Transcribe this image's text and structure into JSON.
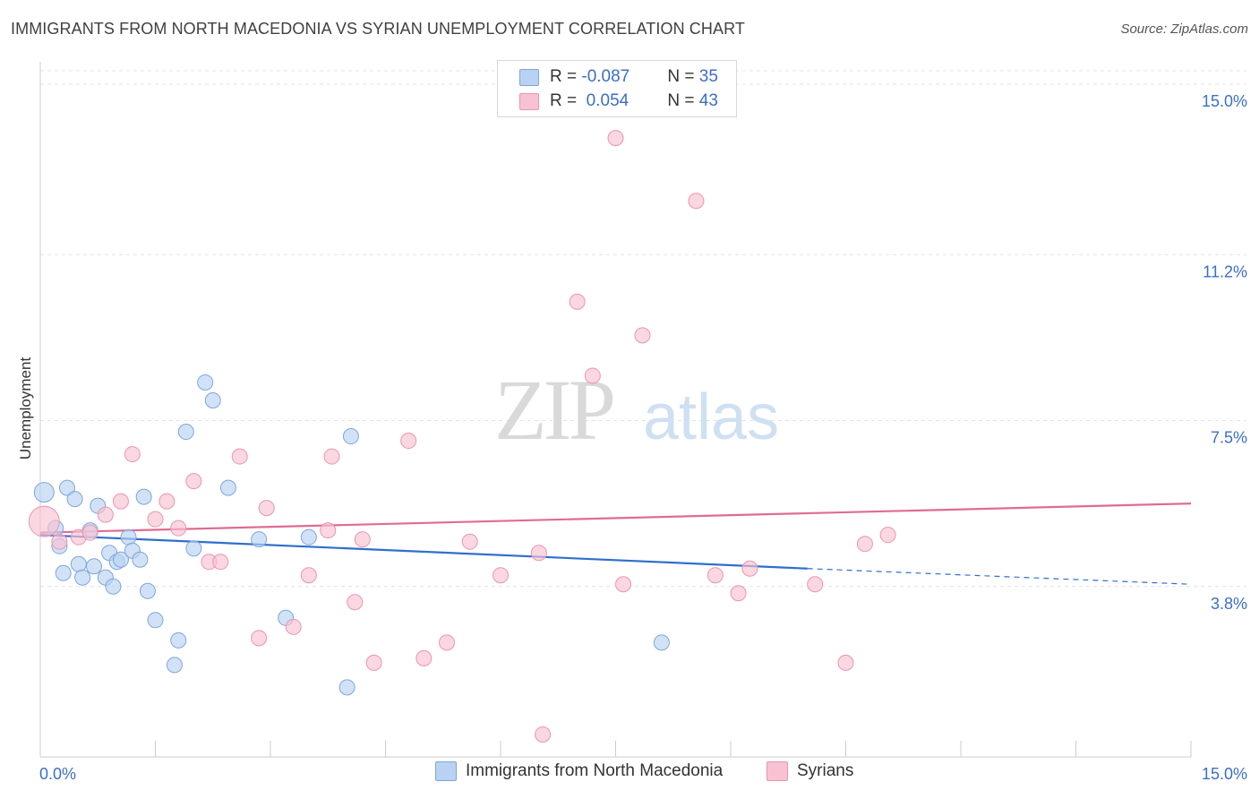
{
  "title": "IMMIGRANTS FROM NORTH MACEDONIA VS SYRIAN UNEMPLOYMENT CORRELATION CHART",
  "source": "Source: ZipAtlas.com",
  "watermark": {
    "zip": "ZIP",
    "atlas": "atlas"
  },
  "colors": {
    "blue_fill": "#b9d2f3",
    "blue_stroke": "#7ea6dc",
    "blue_line": "#2f6fcc",
    "pink_fill": "#f9c2d3",
    "pink_stroke": "#e995b0",
    "pink_line": "#e06b95",
    "axis_label": "#3b6fc4",
    "grid": "#e3e3e3"
  },
  "legend": {
    "rows": [
      {
        "r_label": "R = ",
        "r_value": "-0.087",
        "n_label": "N = ",
        "n_value": "35",
        "color": "#b9d2f3",
        "border": "#7ea6dc"
      },
      {
        "r_label": "R = ",
        "r_value": " 0.054",
        "n_label": "N = ",
        "n_value": "43",
        "color": "#f9c2d3",
        "border": "#e995b0"
      }
    ]
  },
  "chart_data": {
    "type": "scatter",
    "title": "IMMIGRANTS FROM NORTH MACEDONIA VS SYRIAN UNEMPLOYMENT CORRELATION CHART",
    "xlabel": "",
    "ylabel": "Unemployment",
    "xlim": [
      0,
      15
    ],
    "ylim": [
      0,
      15.5
    ],
    "x_tick_labels": [
      {
        "value": 0,
        "label": "0.0%"
      },
      {
        "value": 15,
        "label": "15.0%"
      }
    ],
    "y_tick_labels": [
      {
        "value": 3.8,
        "label": "3.8%"
      },
      {
        "value": 7.5,
        "label": "7.5%"
      },
      {
        "value": 11.2,
        "label": "11.2%"
      },
      {
        "value": 15.0,
        "label": "15.0%"
      }
    ],
    "grid": true,
    "legend_position": "top-center",
    "series": [
      {
        "name": "Immigrants from North Macedonia",
        "color": "#b9d2f3",
        "points": [
          [
            0.05,
            5.9
          ],
          [
            0.2,
            5.1
          ],
          [
            0.25,
            4.7
          ],
          [
            0.3,
            4.1
          ],
          [
            0.35,
            6.0
          ],
          [
            0.45,
            5.75
          ],
          [
            0.5,
            4.3
          ],
          [
            0.55,
            4.0
          ],
          [
            0.65,
            5.05
          ],
          [
            0.7,
            4.25
          ],
          [
            0.75,
            5.6
          ],
          [
            0.85,
            4.0
          ],
          [
            0.9,
            4.55
          ],
          [
            0.95,
            3.8
          ],
          [
            1.0,
            4.35
          ],
          [
            1.05,
            4.4
          ],
          [
            1.15,
            4.9
          ],
          [
            1.2,
            4.6
          ],
          [
            1.3,
            4.4
          ],
          [
            1.35,
            5.8
          ],
          [
            1.4,
            3.7
          ],
          [
            1.5,
            3.05
          ],
          [
            1.8,
            2.6
          ],
          [
            1.9,
            7.25
          ],
          [
            2.0,
            4.65
          ],
          [
            2.15,
            8.35
          ],
          [
            2.25,
            7.95
          ],
          [
            2.45,
            6.0
          ],
          [
            2.85,
            4.85
          ],
          [
            3.2,
            3.1
          ],
          [
            3.5,
            4.9
          ],
          [
            4.0,
            1.55
          ],
          [
            4.05,
            7.15
          ],
          [
            8.1,
            2.55
          ],
          [
            1.75,
            2.05
          ]
        ]
      },
      {
        "name": "Syrians",
        "color": "#f9c2d3",
        "points": [
          [
            0.05,
            5.25
          ],
          [
            0.25,
            4.8
          ],
          [
            0.5,
            4.9
          ],
          [
            0.65,
            5.0
          ],
          [
            0.85,
            5.4
          ],
          [
            1.05,
            5.7
          ],
          [
            1.2,
            6.75
          ],
          [
            1.5,
            5.3
          ],
          [
            1.65,
            5.7
          ],
          [
            1.8,
            5.1
          ],
          [
            2.0,
            6.15
          ],
          [
            2.2,
            4.35
          ],
          [
            2.35,
            4.35
          ],
          [
            2.6,
            6.7
          ],
          [
            2.85,
            2.65
          ],
          [
            2.95,
            5.55
          ],
          [
            3.3,
            2.9
          ],
          [
            3.5,
            4.05
          ],
          [
            3.75,
            5.05
          ],
          [
            3.8,
            6.7
          ],
          [
            4.1,
            3.45
          ],
          [
            4.2,
            4.85
          ],
          [
            4.35,
            2.1
          ],
          [
            4.8,
            7.05
          ],
          [
            5.0,
            2.2
          ],
          [
            5.3,
            2.55
          ],
          [
            5.6,
            4.8
          ],
          [
            6.0,
            4.05
          ],
          [
            6.5,
            4.55
          ],
          [
            6.55,
            0.5
          ],
          [
            7.0,
            10.15
          ],
          [
            7.2,
            8.5
          ],
          [
            7.5,
            13.8
          ],
          [
            7.6,
            3.85
          ],
          [
            7.85,
            9.4
          ],
          [
            8.55,
            12.4
          ],
          [
            8.8,
            4.05
          ],
          [
            9.1,
            3.65
          ],
          [
            9.25,
            4.2
          ],
          [
            10.1,
            3.85
          ],
          [
            10.5,
            2.1
          ],
          [
            10.75,
            4.75
          ],
          [
            11.05,
            4.95
          ]
        ]
      }
    ],
    "trend_lines": [
      {
        "series": "Immigrants from North Macedonia",
        "x0": 0,
        "y0": 4.95,
        "x1": 10.0,
        "y1": 4.2,
        "dashed_to_x": 15,
        "dashed_to_y": 3.85
      },
      {
        "series": "Syrians",
        "x0": 0,
        "y0": 5.0,
        "x1": 15,
        "y1": 5.65
      }
    ]
  },
  "bottom_legend": {
    "items": [
      {
        "label": "Immigrants from North Macedonia",
        "color": "#b9d2f3",
        "border": "#7ea6dc"
      },
      {
        "label": "Syrians",
        "color": "#f9c2d3",
        "border": "#e995b0"
      }
    ]
  }
}
